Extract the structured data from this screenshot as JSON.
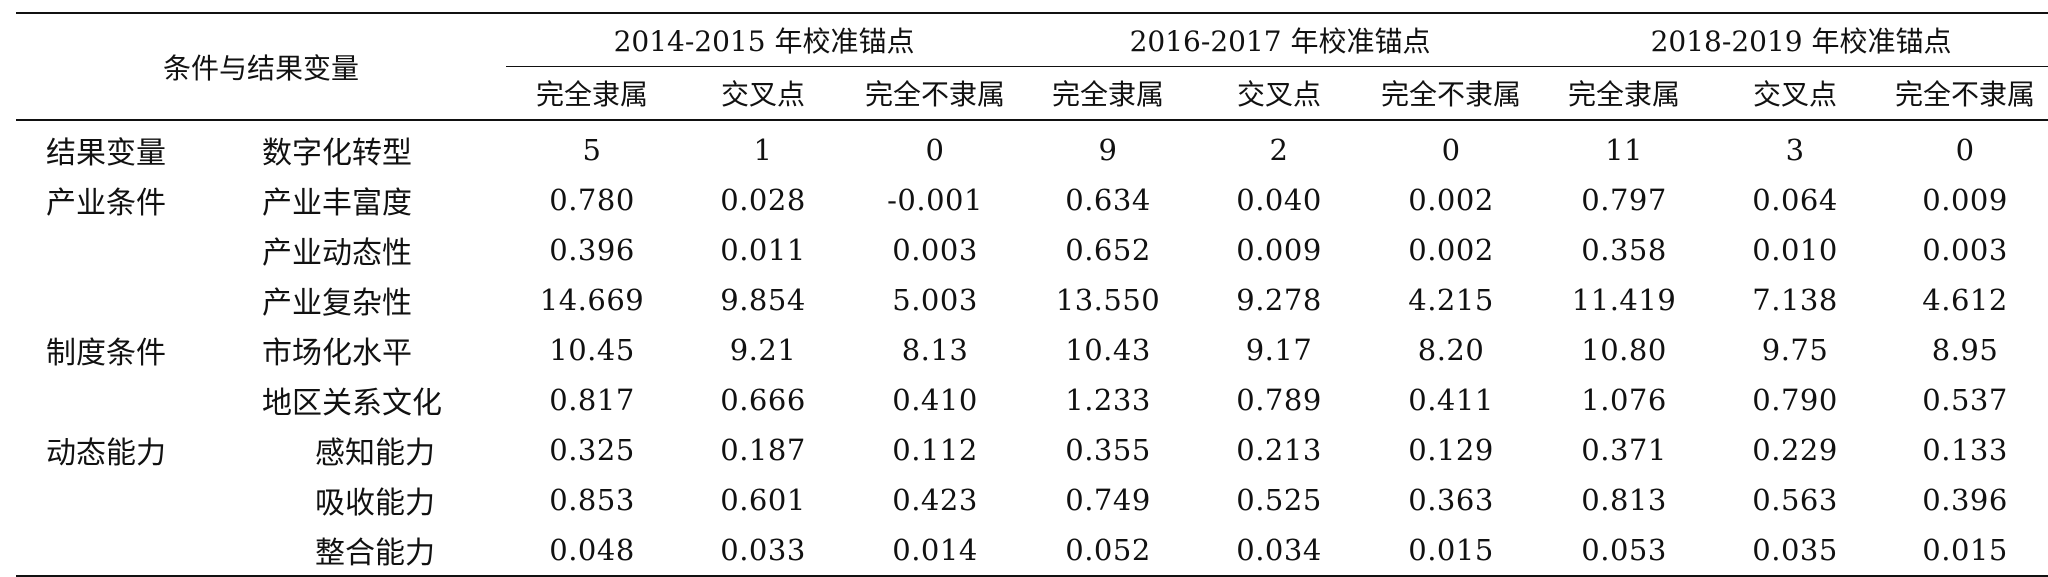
{
  "table": {
    "corner_label": "条件与结果变量",
    "groups": [
      {
        "label": "2014-2015 年校准锚点"
      },
      {
        "label": "2016-2017 年校准锚点"
      },
      {
        "label": "2018-2019 年校准锚点"
      }
    ],
    "subcols": [
      "完全隶属",
      "交叉点",
      "完全不隶属"
    ],
    "rows": [
      {
        "cat": "结果变量",
        "var": "数字化转型",
        "vals": [
          "5",
          "1",
          "0",
          "9",
          "2",
          "0",
          "11",
          "3",
          "0"
        ]
      },
      {
        "cat": "产业条件",
        "var": "产业丰富度",
        "vals": [
          "0.780",
          "0.028",
          "-0.001",
          "0.634",
          "0.040",
          "0.002",
          "0.797",
          "0.064",
          "0.009"
        ]
      },
      {
        "cat": "",
        "var": "产业动态性",
        "vals": [
          "0.396",
          "0.011",
          "0.003",
          "0.652",
          "0.009",
          "0.002",
          "0.358",
          "0.010",
          "0.003"
        ]
      },
      {
        "cat": "",
        "var": "产业复杂性",
        "vals": [
          "14.669",
          "9.854",
          "5.003",
          "13.550",
          "9.278",
          "4.215",
          "11.419",
          "7.138",
          "4.612"
        ]
      },
      {
        "cat": "制度条件",
        "var": "市场化水平",
        "vals": [
          "10.45",
          "9.21",
          "8.13",
          "10.43",
          "9.17",
          "8.20",
          "10.80",
          "9.75",
          "8.95"
        ]
      },
      {
        "cat": "",
        "var": "地区关系文化",
        "vals": [
          "0.817",
          "0.666",
          "0.410",
          "1.233",
          "0.789",
          "0.411",
          "1.076",
          "0.790",
          "0.537"
        ]
      },
      {
        "cat": "动态能力",
        "var": "感知能力",
        "vals": [
          "0.325",
          "0.187",
          "0.112",
          "0.355",
          "0.213",
          "0.129",
          "0.371",
          "0.229",
          "0.133"
        ]
      },
      {
        "cat": "",
        "var": "吸收能力",
        "vals": [
          "0.853",
          "0.601",
          "0.423",
          "0.749",
          "0.525",
          "0.363",
          "0.813",
          "0.563",
          "0.396"
        ]
      },
      {
        "cat": "",
        "var": "整合能力",
        "vals": [
          "0.048",
          "0.033",
          "0.014",
          "0.052",
          "0.034",
          "0.015",
          "0.053",
          "0.035",
          "0.015"
        ]
      }
    ]
  }
}
